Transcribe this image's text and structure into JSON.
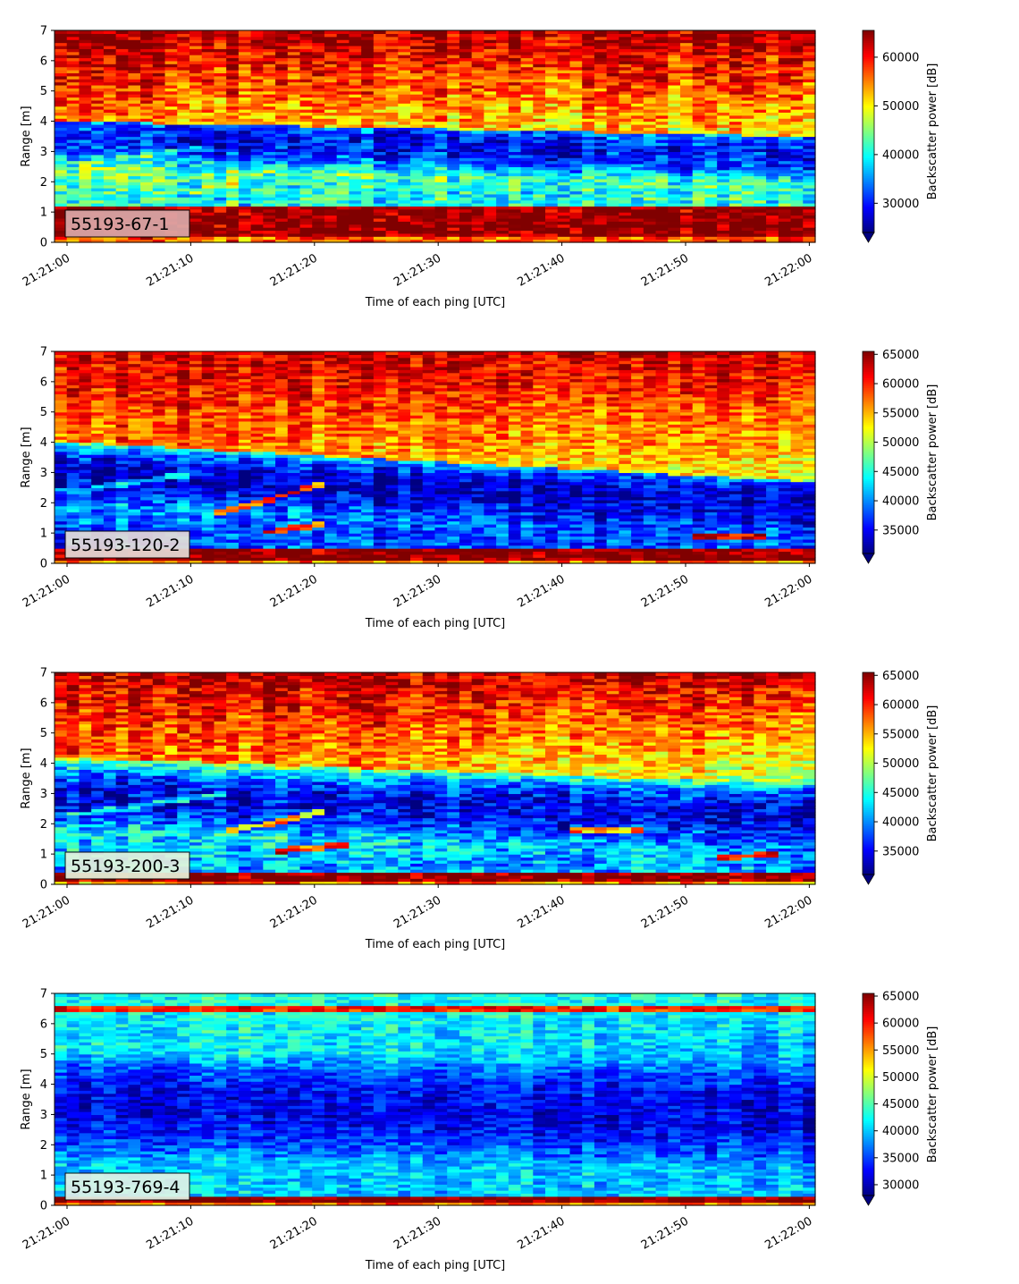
{
  "chart_data": [
    {
      "type": "heatmap",
      "label": "55193-67-1",
      "xlabel": "Time of each ping [UTC]",
      "ylabel": "Range [m]",
      "colorbar_label": "Backscatter power [dB]",
      "colormap": "jet",
      "x_ticks": [
        "21:21:00",
        "21:21:10",
        "21:21:20",
        "21:21:30",
        "21:21:40",
        "21:21:50",
        "21:22:00"
      ],
      "y_ticks": [
        0,
        1,
        2,
        3,
        4,
        5,
        6,
        7
      ],
      "ylim": [
        0,
        7
      ],
      "clim": [
        24000,
        65500
      ],
      "colorbar_ticks": [
        30000,
        40000,
        50000,
        60000
      ],
      "label_box_color": "#dcaaaa",
      "profile": {
        "bottom_band": 1.15,
        "bottom_value": 65500,
        "bottom_fade": 0.2,
        "low_value": 40500,
        "low_top": 1.6,
        "trough_center_start": 3.5,
        "trough_center_end": 2.9,
        "trough_value": 29000,
        "trough_halfwidth": 1.0,
        "upper_start": 4.0,
        "upper_end": 3.5,
        "upper_value_start": 54000,
        "upper_value_end": 50000,
        "top_value": 64000,
        "noise": 5500,
        "streaks": [
          {
            "t0": 0,
            "t1": 10,
            "r0": 2.6,
            "r1": 3.1,
            "value": 41000
          },
          {
            "t0": 9,
            "t1": 17,
            "r0": 1.6,
            "r1": 2.5,
            "value": 46000
          },
          {
            "t0": 17,
            "t1": 22,
            "r0": 1.4,
            "r1": 1.6,
            "value": 44000
          }
        ]
      }
    },
    {
      "type": "heatmap",
      "label": "55193-120-2",
      "xlabel": "Time of each ping [UTC]",
      "ylabel": "Range [m]",
      "colorbar_label": "Backscatter power [dB]",
      "colormap": "jet",
      "x_ticks": [
        "21:21:00",
        "21:21:10",
        "21:21:20",
        "21:21:30",
        "21:21:40",
        "21:21:50",
        "21:22:00"
      ],
      "y_ticks": [
        0,
        1,
        2,
        3,
        4,
        5,
        6,
        7
      ],
      "ylim": [
        0,
        7
      ],
      "clim": [
        31000,
        65500
      ],
      "colorbar_ticks": [
        35000,
        40000,
        45000,
        50000,
        55000,
        60000,
        65000
      ],
      "label_box_color": "#e8ddd8",
      "profile": {
        "bottom_band": 0.5,
        "bottom_value": 65500,
        "bottom_fade": 0.15,
        "low_value": 38000,
        "low_top": 1.2,
        "trough_center_start": 3.0,
        "trough_center_end": 2.0,
        "trough_value": 33500,
        "trough_halfwidth": 1.1,
        "upper_start": 4.0,
        "upper_end": 2.7,
        "upper_value_start": 58000,
        "upper_value_end": 52000,
        "top_value": 63000,
        "noise": 4000,
        "streaks": [
          {
            "t0": 0,
            "t1": 10,
            "r0": 2.4,
            "r1": 3.0,
            "value": 42000
          },
          {
            "t0": 11,
            "t1": 20,
            "r0": 1.6,
            "r1": 2.6,
            "value": 58000
          },
          {
            "t0": 15,
            "t1": 20,
            "r0": 1.0,
            "r1": 1.3,
            "value": 60000
          },
          {
            "t0": 50,
            "t1": 56,
            "r0": 0.9,
            "r1": 0.9,
            "value": 62000
          }
        ]
      }
    },
    {
      "type": "heatmap",
      "label": "55193-200-3",
      "xlabel": "Time of each ping [UTC]",
      "ylabel": "Range [m]",
      "colorbar_label": "Backscatter power [dB]",
      "colormap": "jet",
      "x_ticks": [
        "21:21:00",
        "21:21:10",
        "21:21:20",
        "21:21:30",
        "21:21:40",
        "21:21:50",
        "21:22:00"
      ],
      "y_ticks": [
        0,
        1,
        2,
        3,
        4,
        5,
        6,
        7
      ],
      "ylim": [
        0,
        7
      ],
      "clim": [
        31000,
        65500
      ],
      "colorbar_ticks": [
        35000,
        40000,
        45000,
        50000,
        55000,
        60000,
        65000
      ],
      "label_box_color": "#e6f3dc",
      "profile": {
        "bottom_band": 0.4,
        "bottom_value": 65500,
        "bottom_fade": 0.15,
        "low_value": 41000,
        "low_top": 0.8,
        "trough_center_start": 3.0,
        "trough_center_end": 2.2,
        "trough_value": 34500,
        "trough_halfwidth": 1.2,
        "upper_start": 4.2,
        "upper_end": 3.3,
        "upper_value_start": 58000,
        "upper_value_end": 50000,
        "top_value": 63500,
        "noise": 4500,
        "streaks": [
          {
            "t0": 0,
            "t1": 12,
            "r0": 2.3,
            "r1": 3.0,
            "value": 43000
          },
          {
            "t0": 12,
            "t1": 20,
            "r0": 1.7,
            "r1": 2.4,
            "value": 54000
          },
          {
            "t0": 16,
            "t1": 22,
            "r0": 1.1,
            "r1": 1.3,
            "value": 60000
          },
          {
            "t0": 40,
            "t1": 46,
            "r0": 1.8,
            "r1": 1.8,
            "value": 55000
          },
          {
            "t0": 52,
            "t1": 57,
            "r0": 0.9,
            "r1": 1.0,
            "value": 60000
          }
        ]
      }
    },
    {
      "type": "heatmap",
      "label": "55193-769-4",
      "xlabel": "Time of each ping [UTC]",
      "ylabel": "Range [m]",
      "colorbar_label": "Backscatter power [dB]",
      "colormap": "jet",
      "x_ticks": [
        "21:21:00",
        "21:21:10",
        "21:21:20",
        "21:21:30",
        "21:21:40",
        "21:21:50",
        "21:22:00"
      ],
      "y_ticks": [
        0,
        1,
        2,
        3,
        4,
        5,
        6,
        7
      ],
      "ylim": [
        0,
        7
      ],
      "clim": [
        28000,
        65500
      ],
      "colorbar_ticks": [
        30000,
        35000,
        40000,
        45000,
        50000,
        55000,
        60000,
        65000
      ],
      "label_box_color": "#e2f4e6",
      "profile": {
        "bottom_band": 0.3,
        "bottom_value": 65500,
        "bottom_fade": 0.1,
        "low_value": 40000,
        "low_top": 1.2,
        "trough_center_start": 3.3,
        "trough_center_end": 3.0,
        "trough_value": 32000,
        "trough_halfwidth": 1.8,
        "upper_start": 5.0,
        "upper_end": 4.8,
        "upper_value_start": 42000,
        "upper_value_end": 39000,
        "top_value": 43000,
        "top_band": 6.5,
        "top_band_value": 60000,
        "noise": 3500,
        "streaks": []
      }
    }
  ]
}
